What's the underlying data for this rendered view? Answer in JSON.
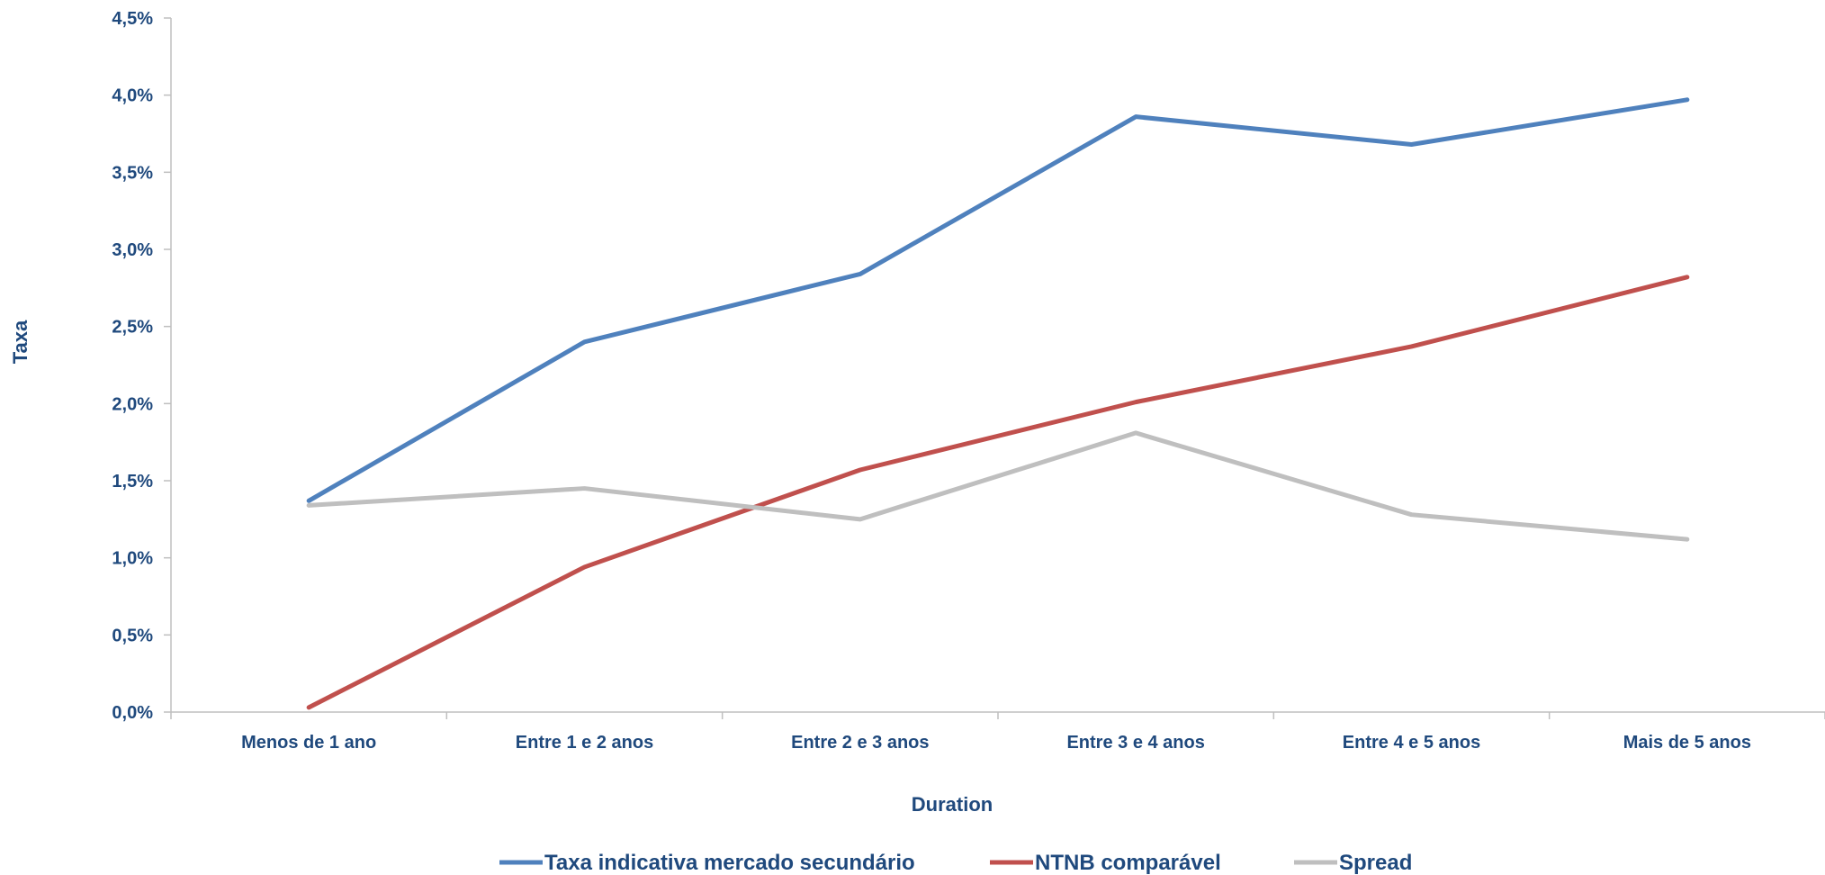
{
  "chart_data": {
    "type": "line",
    "title": "",
    "xlabel": "Duration",
    "ylabel": "Taxa",
    "categories": [
      "Menos de 1 ano",
      "Entre 1 e 2 anos",
      "Entre 2 e 3 anos",
      "Entre 3 e 4 anos",
      "Entre 4 e 5 anos",
      "Mais de 5 anos"
    ],
    "ylim": [
      0,
      4.5
    ],
    "yticks": [
      "0,0%",
      "0,5%",
      "1,0%",
      "1,5%",
      "2,0%",
      "2,5%",
      "3,0%",
      "3,5%",
      "4,0%",
      "4,5%"
    ],
    "grid": false,
    "legend_position": "bottom",
    "series": [
      {
        "name": "Taxa indicativa mercado secundário",
        "color": "#4f81bd",
        "values": [
          1.37,
          2.4,
          2.84,
          3.86,
          3.68,
          3.97
        ]
      },
      {
        "name": "NTNB comparável",
        "color": "#c0504d",
        "values": [
          0.03,
          0.94,
          1.57,
          2.01,
          2.37,
          2.82
        ]
      },
      {
        "name": "Spread",
        "color": "#bfbfbf",
        "values": [
          1.34,
          1.45,
          1.25,
          1.81,
          1.28,
          1.12
        ]
      }
    ]
  }
}
